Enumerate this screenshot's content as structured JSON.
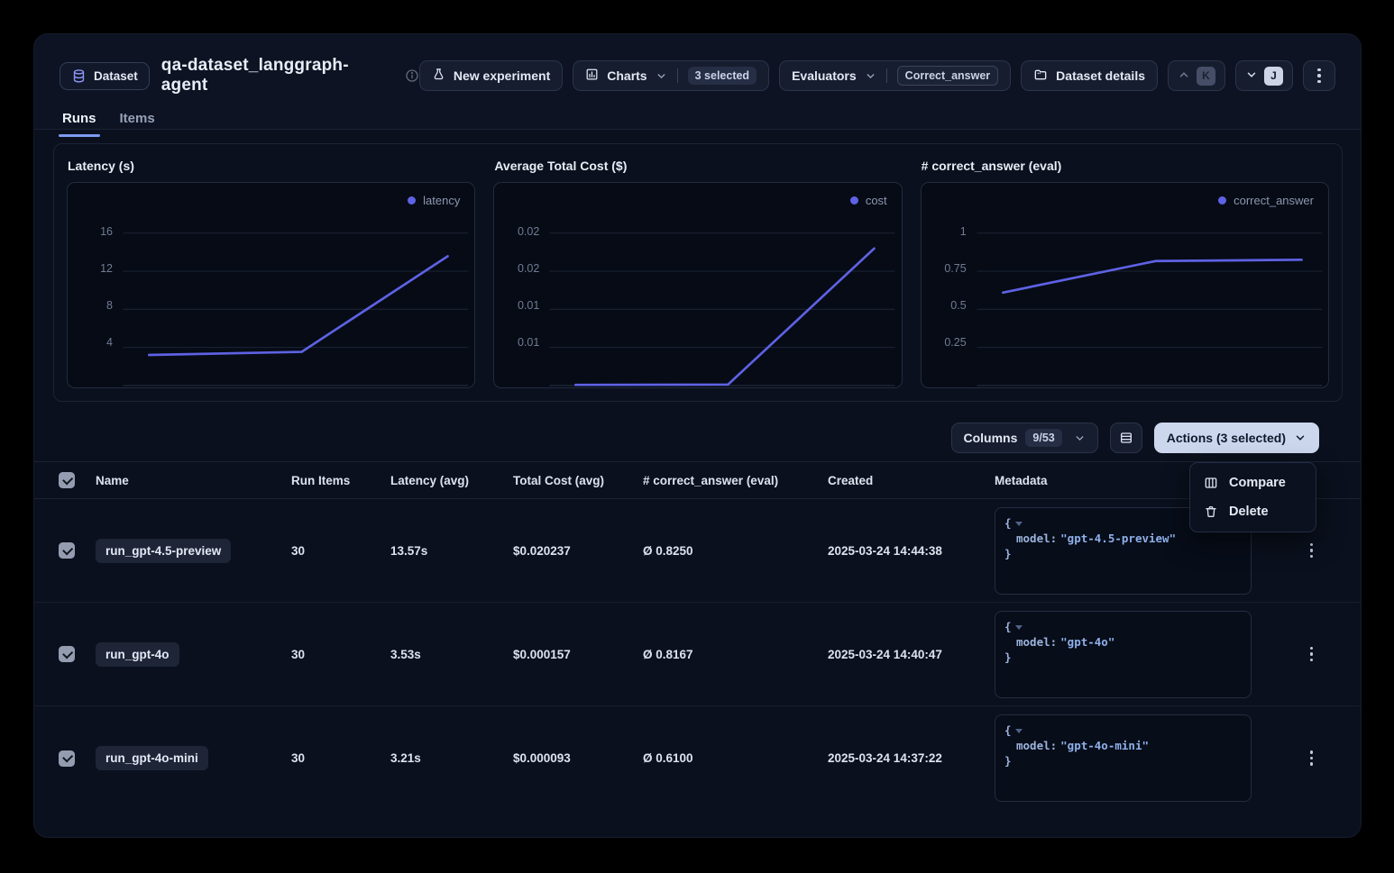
{
  "header": {
    "dataset_badge": "Dataset",
    "title": "qa-dataset_langgraph-agent",
    "tabs": {
      "runs": "Runs",
      "items": "Items"
    },
    "toolbar": {
      "new_experiment": "New experiment",
      "charts": "Charts",
      "charts_selected": "3 selected",
      "evaluators": "Evaluators",
      "evaluators_selected": "Correct_answer",
      "dataset_details": "Dataset details",
      "shortcut_up": "K",
      "shortcut_down": "J"
    }
  },
  "chart_data": [
    {
      "type": "line",
      "title": "Latency (s)",
      "legend": "latency",
      "categories": [
        "run_gpt-4o-mini",
        "run_gpt-4o",
        "run_gpt-4.5-preview"
      ],
      "values": [
        3.21,
        3.53,
        13.57
      ],
      "tick_labels": [
        "16",
        "12",
        "8",
        "4"
      ],
      "y_axis_top_value": 16,
      "ylim": [
        0,
        16.4
      ],
      "grid": true,
      "legend_position": "top-right",
      "line_color": "#5e62e4"
    },
    {
      "type": "line",
      "title": "Average Total Cost ($)",
      "legend": "cost",
      "categories": [
        "run_gpt-4o-mini",
        "run_gpt-4o",
        "run_gpt-4.5-preview"
      ],
      "values": [
        9.3e-05,
        0.000157,
        0.020237
      ],
      "tick_labels": [
        "0.02",
        "0.02",
        "0.01",
        "0.01"
      ],
      "y_axis_top_value": 0.0225,
      "ylim": [
        0,
        0.023
      ],
      "grid": true,
      "legend_position": "top-right",
      "line_color": "#5e62e4"
    },
    {
      "type": "line",
      "title": "# correct_answer (eval)",
      "legend": "correct_answer",
      "categories": [
        "run_gpt-4o-mini",
        "run_gpt-4o",
        "run_gpt-4.5-preview"
      ],
      "values": [
        0.61,
        0.8167,
        0.825
      ],
      "tick_labels": [
        "1",
        "0.75",
        "0.5",
        "0.25"
      ],
      "y_axis_top_value": 1,
      "ylim": [
        0,
        1.025
      ],
      "grid": true,
      "legend_position": "top-right",
      "line_color": "#5e62e4"
    }
  ],
  "controls": {
    "columns": "Columns",
    "columns_count": "9/53",
    "actions": "Actions (3 selected)",
    "menu": {
      "compare": "Compare",
      "delete": "Delete"
    }
  },
  "table": {
    "headers": {
      "name": "Name",
      "run_items": "Run Items",
      "latency": "Latency (avg)",
      "total_cost": "Total Cost (avg)",
      "correct_answer": "# correct_answer (eval)",
      "created": "Created",
      "metadata": "Metadata"
    },
    "rows": [
      {
        "name": "run_gpt-4.5-preview",
        "run_items": "30",
        "latency": "13.57s",
        "total_cost": "$0.020237",
        "correct_answer": "Ø 0.8250",
        "created": "2025-03-24 14:44:38",
        "meta_open": "{",
        "meta_key": "model:",
        "meta_value": "\"gpt-4.5-preview\"",
        "meta_close": "}"
      },
      {
        "name": "run_gpt-4o",
        "run_items": "30",
        "latency": "3.53s",
        "total_cost": "$0.000157",
        "correct_answer": "Ø 0.8167",
        "created": "2025-03-24 14:40:47",
        "meta_open": "{",
        "meta_key": "model:",
        "meta_value": "\"gpt-4o\"",
        "meta_close": "}"
      },
      {
        "name": "run_gpt-4o-mini",
        "run_items": "30",
        "latency": "3.21s",
        "total_cost": "$0.000093",
        "correct_answer": "Ø 0.6100",
        "created": "2025-03-24 14:37:22",
        "meta_open": "{",
        "meta_key": "model:",
        "meta_value": "\"gpt-4o-mini\"",
        "meta_close": "}"
      }
    ]
  }
}
